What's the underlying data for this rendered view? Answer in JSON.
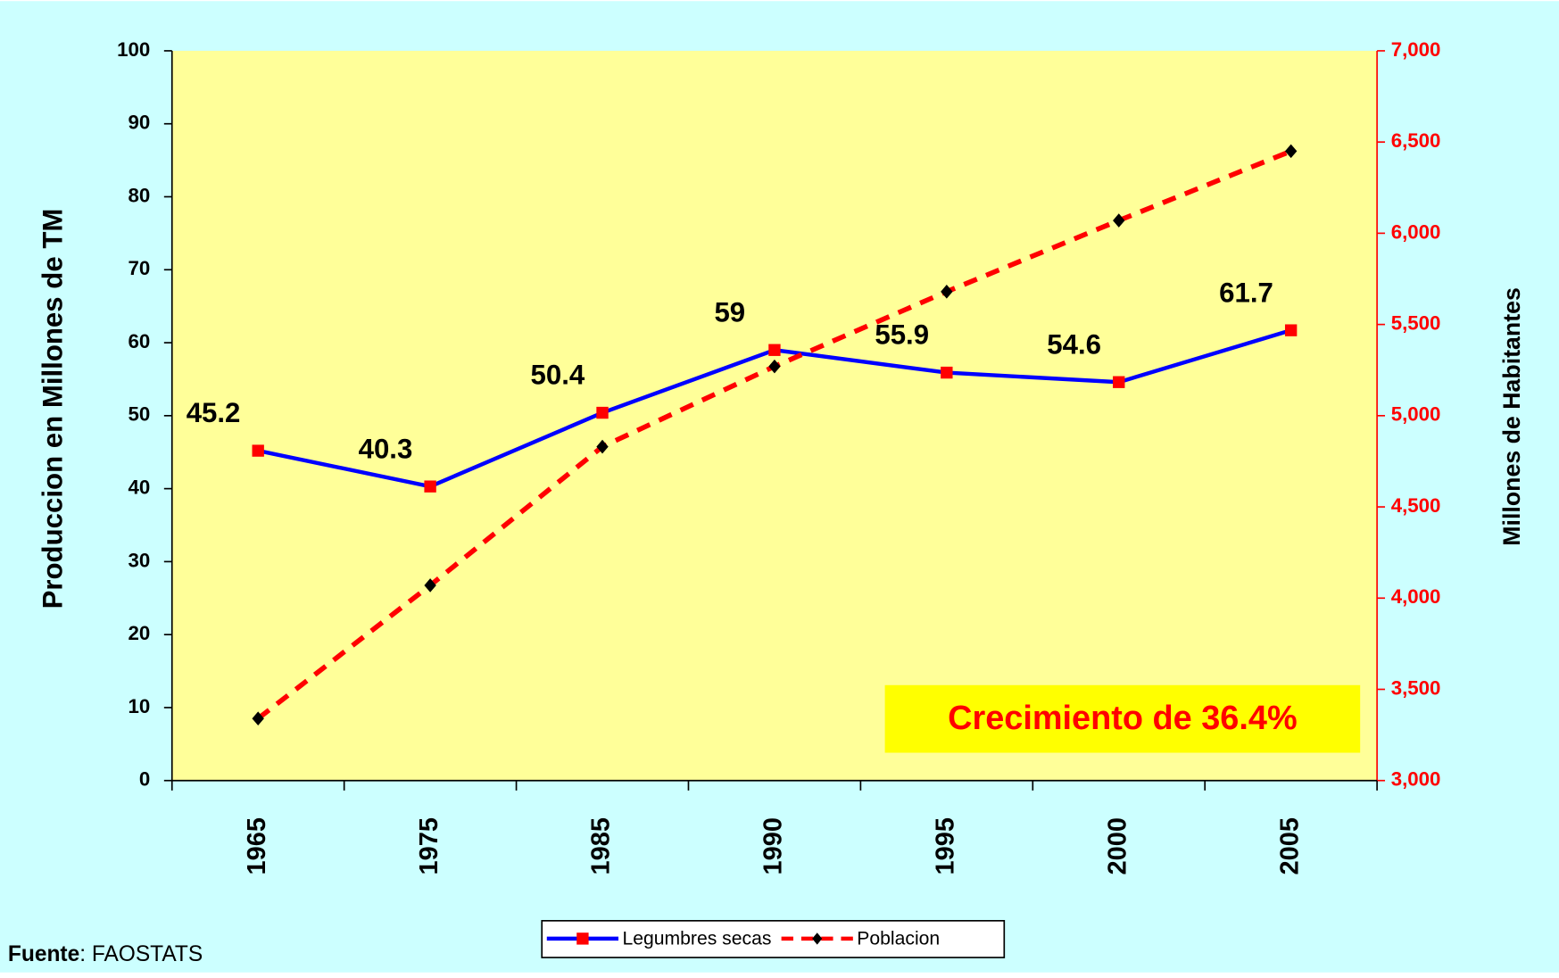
{
  "chart_data": {
    "type": "line",
    "categories": [
      "1965",
      "1975",
      "1985",
      "1990",
      "1995",
      "2000",
      "2005"
    ],
    "series": [
      {
        "name": "Legumbres secas",
        "color": "#0000ff",
        "marker_color": "#ff0000",
        "values": [
          45.2,
          40.3,
          50.4,
          59,
          55.9,
          54.6,
          61.7
        ]
      },
      {
        "name": "Poblacion",
        "color": "#ff0000",
        "marker_color": "#000000",
        "axis": "y2",
        "values": [
          3340,
          4070,
          4830,
          5270,
          5680,
          6070,
          6450
        ]
      }
    ],
    "ylabel": "Produccion en Millones de TM",
    "y2label": "Millones de Habitantes",
    "ylim": [
      0,
      100
    ],
    "yticks": [
      0,
      10,
      20,
      30,
      40,
      50,
      60,
      70,
      80,
      90,
      100
    ],
    "y2lim": [
      3000,
      7000
    ],
    "y2ticks": [
      {
        "value": 3000,
        "label": "3,000"
      },
      {
        "value": 3500,
        "label": "3,500"
      },
      {
        "value": 4000,
        "label": "4,000"
      },
      {
        "value": 4500,
        "label": "4,500"
      },
      {
        "value": 5000,
        "label": "5,000"
      },
      {
        "value": 5500,
        "label": "5,500"
      },
      {
        "value": 6000,
        "label": "6,000"
      },
      {
        "value": 6500,
        "label": "6,500"
      },
      {
        "value": 7000,
        "label": "7,000"
      }
    ],
    "annotation": "Crecimiento de 36.4%",
    "source_label": "Fuente",
    "source": ": FAOSTATS",
    "legend": "bottom"
  }
}
